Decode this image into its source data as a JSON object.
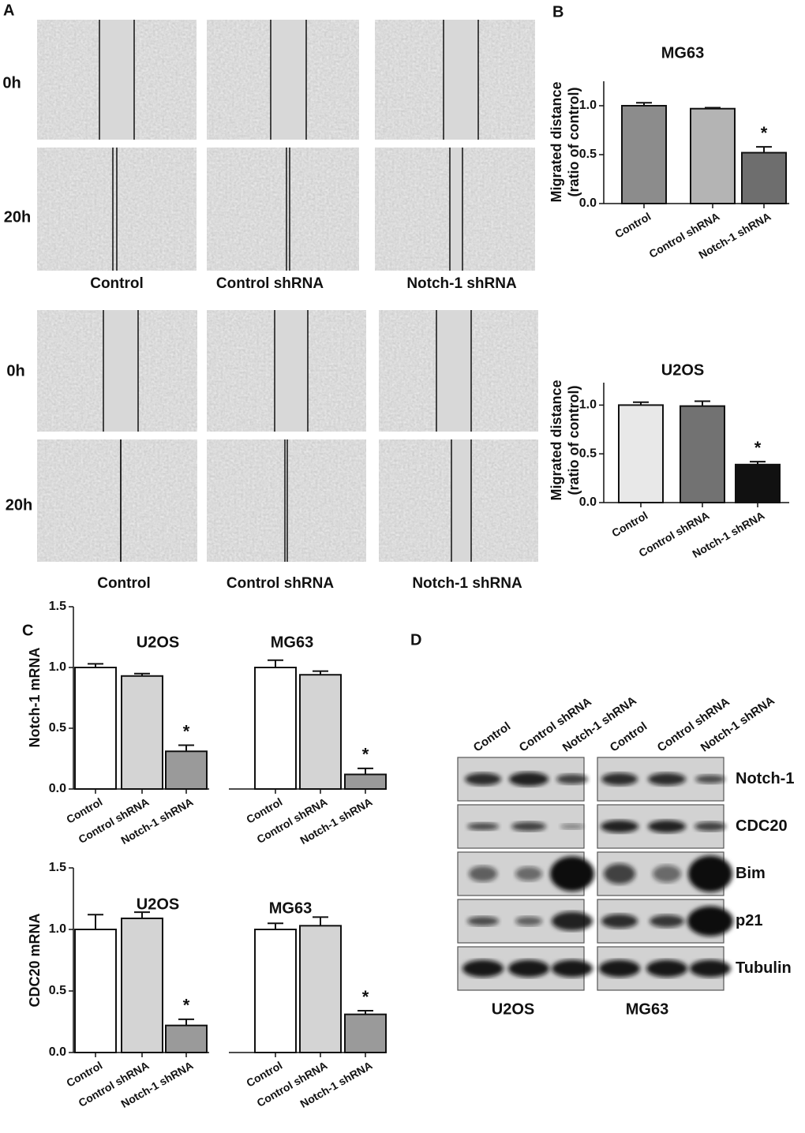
{
  "panel_labels": [
    "A",
    "B",
    "C",
    "D"
  ],
  "panel_a": {
    "top": {
      "rows": [
        "0h",
        "20h"
      ],
      "columns": [
        "Control",
        "Control shRNA",
        "Notch-1 shRNA"
      ]
    },
    "bottom": {
      "rows": [
        "0h",
        "20h"
      ],
      "columns": [
        "Control",
        "Control  shRNA",
        "Notch-1 shRNA"
      ]
    }
  },
  "chart_data": [
    {
      "type": "bar",
      "ylabel": [
        "Migrated distance",
        "(ratio of control)"
      ],
      "ylim": [
        0,
        1.25
      ],
      "yticks": [
        {
          "value": 0,
          "label": "0.0"
        },
        0.5,
        {
          "value": 1,
          "label": "1.0"
        }
      ],
      "groups": [
        {
          "title": "MG63",
          "categories": [
            "Control",
            "Control shRNA",
            "Notch-1 shRNA"
          ],
          "values": [
            1.0,
            0.97,
            0.52
          ],
          "errors": [
            0.03,
            0.01,
            0.06
          ],
          "colors": [
            "#8c8c8c",
            "#b4b4b4",
            "#6e6e6e"
          ],
          "annotations": [
            null,
            null,
            "*"
          ]
        }
      ]
    },
    {
      "type": "bar",
      "ylabel": [
        "Migrated distance",
        "(ratio of control)"
      ],
      "ylim": [
        0,
        1.23
      ],
      "yticks": [
        {
          "value": 0,
          "label": "0.0"
        },
        0.5,
        {
          "value": 1,
          "label": "1.0"
        }
      ],
      "groups": [
        {
          "title": "U2OS",
          "categories": [
            "Control",
            "Control shRNA",
            "Notch-1 shRNA"
          ],
          "values": [
            1.0,
            0.99,
            0.39
          ],
          "errors": [
            0.03,
            0.05,
            0.03
          ],
          "colors": [
            "#e8e8e8",
            "#727272",
            "#111111"
          ],
          "annotations": [
            null,
            null,
            "*"
          ]
        }
      ]
    },
    {
      "type": "bar",
      "ylabel": "Notch-1 mRNA",
      "ylim": [
        0,
        1.5
      ],
      "yticks": [
        {
          "value": 0,
          "label": "0.0"
        },
        0.5,
        {
          "value": 1,
          "label": "1.0"
        },
        1.5
      ],
      "groups": [
        {
          "title": "U2OS",
          "categories": [
            "Control",
            "Control shRNA",
            "Notch-1 shRNA"
          ],
          "values": [
            1.0,
            0.93,
            0.31
          ],
          "errors": [
            0.03,
            0.02,
            0.05
          ],
          "colors": [
            "#ffffff",
            "#d4d4d4",
            "#9a9a9a"
          ],
          "annotations": [
            null,
            null,
            "*"
          ]
        },
        {
          "title": "MG63",
          "categories": [
            "Control",
            "Control shRNA",
            "Notch-1 shRNA"
          ],
          "values": [
            1.0,
            0.94,
            0.12
          ],
          "errors": [
            0.06,
            0.03,
            0.05
          ],
          "colors": [
            "#ffffff",
            "#d4d4d4",
            "#9a9a9a"
          ],
          "annotations": [
            null,
            null,
            "*"
          ]
        }
      ]
    },
    {
      "type": "bar",
      "ylabel": "CDC20 mRNA",
      "ylim": [
        0,
        1.5
      ],
      "yticks": [
        {
          "value": 0,
          "label": "0.0"
        },
        0.5,
        {
          "value": 1,
          "label": "1.0"
        },
        1.5
      ],
      "groups": [
        {
          "title": "U2OS",
          "categories": [
            "Control",
            "Control shRNA",
            "Notch-1 shRNA"
          ],
          "values": [
            1.0,
            1.09,
            0.22
          ],
          "errors": [
            0.12,
            0.05,
            0.05
          ],
          "colors": [
            "#ffffff",
            "#d4d4d4",
            "#9a9a9a"
          ],
          "annotations": [
            null,
            null,
            "*"
          ]
        },
        {
          "title": "MG63",
          "categories": [
            "Control",
            "Control shRNA",
            "Notch-1 shRNA"
          ],
          "values": [
            1.0,
            1.03,
            0.31
          ],
          "errors": [
            0.05,
            0.07,
            0.03
          ],
          "colors": [
            "#ffffff",
            "#d4d4d4",
            "#9a9a9a"
          ],
          "annotations": [
            null,
            null,
            "*"
          ]
        }
      ]
    }
  ],
  "panel_d": {
    "lanes": [
      [
        "Control",
        "Control shRNA",
        "Notch-1 shRNA"
      ],
      [
        "Control",
        "Control  shRNA",
        "Notch-1 shRNA"
      ]
    ],
    "proteins": [
      "Notch-1",
      "CDC20",
      "Bim",
      "p21",
      "Tubulin"
    ],
    "cell_lines": [
      "U2OS",
      "MG63"
    ]
  }
}
